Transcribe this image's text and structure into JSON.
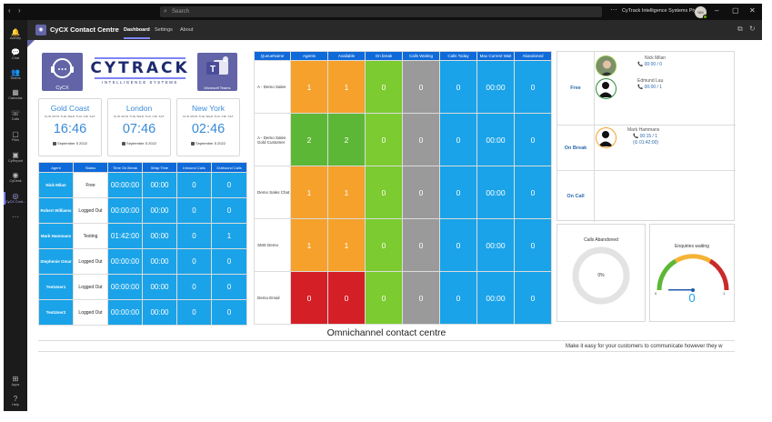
{
  "titlebar": {
    "search_placeholder": "Search",
    "more": "···",
    "org_name": "CyTrack Intelligence Systems Pty...",
    "avatar_initials": "NM"
  },
  "rail": [
    {
      "label": "Activity",
      "icon": "bell-icon",
      "glyph": "🔔"
    },
    {
      "label": "Chat",
      "icon": "chat-icon",
      "glyph": "💬"
    },
    {
      "label": "Teams",
      "icon": "teams-icon",
      "glyph": "👥"
    },
    {
      "label": "Calendar",
      "icon": "calendar-icon",
      "glyph": "▦"
    },
    {
      "label": "Calls",
      "icon": "phone-icon",
      "glyph": "☏"
    },
    {
      "label": "Files",
      "icon": "file-icon",
      "glyph": "▢"
    },
    {
      "label": "CyReport",
      "icon": "cyreport-icon",
      "glyph": "▣"
    },
    {
      "label": "CyDesk",
      "icon": "cydesk-icon",
      "glyph": "◉"
    },
    {
      "label": "CyCX Cont...",
      "icon": "cycx-icon",
      "glyph": "◎"
    },
    {
      "label": "Apps",
      "icon": "apps-icon",
      "glyph": "⊞"
    },
    {
      "label": "Help",
      "icon": "help-icon",
      "glyph": "?"
    }
  ],
  "rail_more": "···",
  "app": {
    "title": "CyCX Contact Centre",
    "tabs": [
      "Dashboard",
      "Settings",
      "About"
    ],
    "active_tab": "Dashboard"
  },
  "logos": {
    "cycx": "CyCX",
    "cytrack_word": "CYTRACK",
    "cytrack_sub": "INTELLIGENCE SYSTEMS",
    "teams": "Microsoft Teams"
  },
  "clocks": [
    {
      "city": "Gold Coast",
      "days": "SUN MON TUE WED THU FRI SAT",
      "time": "16:46",
      "date": "September 5 2022"
    },
    {
      "city": "London",
      "days": "SUN MON TUE WED THU FRI SAT",
      "time": "07:46",
      "date": "September 5 2022"
    },
    {
      "city": "New York",
      "days": "SUN MON TUE WED THU FRI SAT",
      "time": "02:46",
      "date": "September 5 2022"
    }
  ],
  "agent_table": {
    "headers": [
      "Agent",
      "Status",
      "Time On Break",
      "Wrap Time",
      "Inbound Calls",
      "Outbound Calls"
    ],
    "rows": [
      [
        "Nick Milan",
        "Free",
        "00:00:00",
        "00:00",
        "0",
        "0"
      ],
      [
        "Robert Williams",
        "Logged Out",
        "00:00:00",
        "00:00",
        "0",
        "0"
      ],
      [
        "Mark Hammans",
        "Testing",
        "01:42:00",
        "00:00",
        "0",
        "1"
      ],
      [
        "Stephenie Omar",
        "Logged Out",
        "00:00:00",
        "00:00",
        "0",
        "0"
      ],
      [
        "TestUser1",
        "Logged Out",
        "00:00:00",
        "00:00",
        "0",
        "0"
      ],
      [
        "TestUser2",
        "Logged Out",
        "00:00:00",
        "00:00",
        "0",
        "0"
      ]
    ]
  },
  "queue_table": {
    "headers": [
      "QueueName",
      "Agents",
      "Available",
      "On break",
      "Calls Waiting",
      "Calls Today",
      "Max Current Wait",
      "Abandoned"
    ],
    "rows": [
      {
        "cells": [
          "A - Demo Sales",
          "1",
          "1",
          "0",
          "0",
          "0",
          "00:00",
          "0"
        ],
        "colors": [
          "orange",
          "orange"
        ]
      },
      {
        "cells": [
          "A - Demo Sales Gold Customer",
          "2",
          "2",
          "0",
          "0",
          "0",
          "00:00",
          "0"
        ],
        "colors": [
          "green",
          "green"
        ]
      },
      {
        "cells": [
          "Demo Sales Chat",
          "1",
          "1",
          "0",
          "0",
          "0",
          "00:00",
          "0"
        ],
        "colors": [
          "orange",
          "orange"
        ]
      },
      {
        "cells": [
          "SMS Demo",
          "1",
          "1",
          "0",
          "0",
          "0",
          "00:00",
          "0"
        ],
        "colors": [
          "orange",
          "orange"
        ]
      },
      {
        "cells": [
          "Demo Email",
          "0",
          "0",
          "0",
          "0",
          "0",
          "00:00",
          "0"
        ],
        "colors": [
          "red",
          "red"
        ]
      }
    ]
  },
  "status_panel": {
    "groups": [
      "Free",
      "On Break",
      "On Call"
    ],
    "free_agents": [
      {
        "name": "Nick Milan",
        "stats": "📞 00:00 / 0"
      },
      {
        "name": "Edmund Lau",
        "stats": "📞 00:00 / 1"
      }
    ],
    "break_agents": [
      {
        "name": "Mark Hammans",
        "stats": "📞 00:15 / 1",
        "extra": "(⏲ 01:42:00)"
      }
    ]
  },
  "gauges": {
    "abandoned": {
      "title": "Calls Abandoned",
      "value_label": "0%",
      "value": 0
    },
    "enquiries": {
      "title": "Enquiries waiting",
      "min": "0",
      "max": "1",
      "value": "0"
    }
  },
  "footer": {
    "title": "Omnichannel contact centre",
    "marquee": "Make it easy for your customers to communicate however they w"
  },
  "colors": {
    "accent": "#6264a7",
    "blue": "#1aa3e8",
    "header_blue": "#0f6ad9",
    "orange": "#f5a12b",
    "green": "#78c63a",
    "grey": "#9a9a9a",
    "red": "#d41f26"
  }
}
